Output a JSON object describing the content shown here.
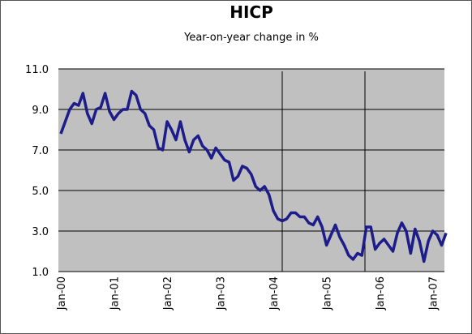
{
  "chart_data": {
    "type": "line",
    "title": "HICP",
    "subtitle": "Year-on-year change in %",
    "categories": [
      "Jan-00",
      null,
      null,
      null,
      null,
      null,
      null,
      null,
      null,
      null,
      null,
      null,
      "Jan-01",
      null,
      null,
      null,
      null,
      null,
      null,
      null,
      null,
      null,
      null,
      null,
      "Jan-02",
      null,
      null,
      null,
      null,
      null,
      null,
      null,
      null,
      null,
      null,
      null,
      "Jan-03",
      null,
      null,
      null,
      null,
      null,
      null,
      null,
      null,
      null,
      null,
      null,
      "Jan-04",
      null,
      null,
      null,
      null,
      null,
      null,
      null,
      null,
      null,
      null,
      null,
      "Jan-05",
      null,
      null,
      null,
      null,
      null,
      null,
      null,
      null,
      null,
      null,
      null,
      "Jan-06",
      null,
      null,
      null,
      null,
      null,
      null,
      null,
      null,
      null,
      null,
      null,
      "Jan-07",
      null,
      null,
      null
    ],
    "series": [
      {
        "name": "HICP",
        "color": "#1c1c8a",
        "values": [
          7.8,
          8.4,
          9.0,
          9.3,
          9.2,
          9.8,
          8.8,
          8.3,
          9.0,
          9.1,
          9.8,
          8.9,
          8.5,
          8.8,
          9.0,
          9.0,
          9.9,
          9.7,
          9.0,
          8.8,
          8.2,
          8.0,
          7.1,
          7.0,
          8.4,
          8.0,
          7.5,
          8.4,
          7.5,
          6.9,
          7.5,
          7.7,
          7.2,
          7.0,
          6.6,
          7.1,
          6.8,
          6.5,
          6.4,
          5.5,
          5.7,
          6.2,
          6.1,
          5.8,
          5.2,
          5.0,
          5.2,
          4.8,
          4.0,
          3.6,
          3.5,
          3.6,
          3.9,
          3.9,
          3.7,
          3.7,
          3.4,
          3.3,
          3.7,
          3.2,
          2.3,
          2.8,
          3.3,
          2.7,
          2.3,
          1.8,
          1.6,
          1.9,
          1.8,
          3.2,
          3.2,
          2.1,
          2.4,
          2.6,
          2.3,
          2.0,
          2.9,
          3.4,
          3.0,
          1.9,
          3.1,
          2.5,
          1.5,
          2.5,
          3.0,
          2.8,
          2.3,
          2.9
        ]
      }
    ],
    "ylim": [
      1,
      11
    ],
    "yticks": [
      {
        "value": 1,
        "label": "1.0"
      },
      {
        "value": 3,
        "label": "3.0"
      },
      {
        "value": 5,
        "label": "5.0"
      },
      {
        "value": 7,
        "label": "7.0"
      },
      {
        "value": 9,
        "label": "9.0"
      },
      {
        "value": 11,
        "label": "11.0"
      }
    ],
    "grid": true
  }
}
